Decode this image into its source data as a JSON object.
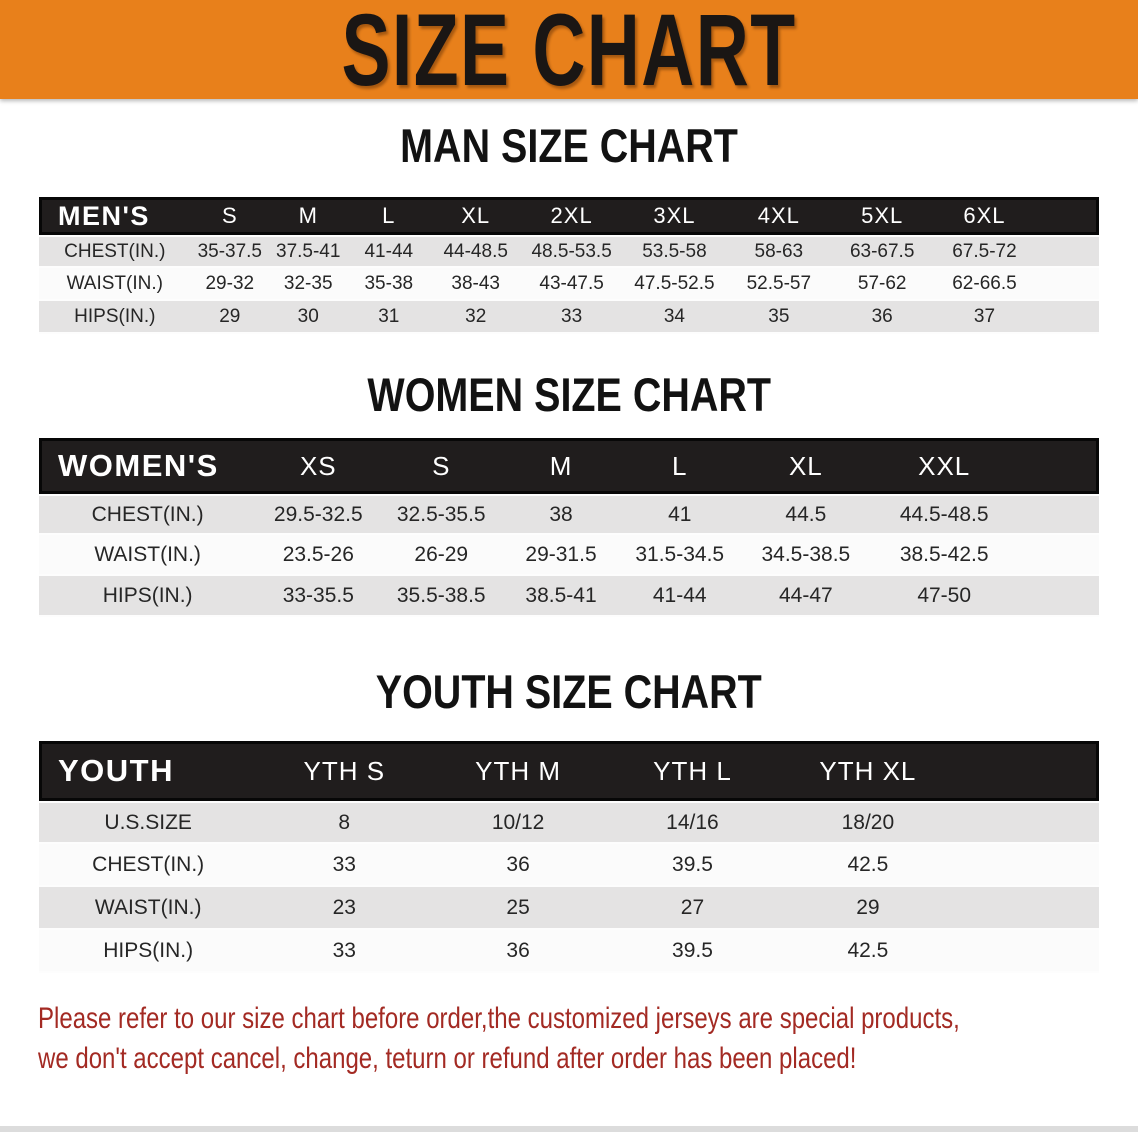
{
  "banner": {
    "title": "SIZE CHART"
  },
  "sections": [
    {
      "title": "MAN SIZE CHART",
      "header_label": "MEN'S",
      "columns": [
        "S",
        "M",
        "L",
        "XL",
        "2XL",
        "3XL",
        "4XL",
        "5XL",
        "6XL"
      ],
      "rows": [
        {
          "label": "CHEST(IN.)",
          "values": [
            "35-37.5",
            "37.5-41",
            "41-44",
            "44-48.5",
            "48.5-53.5",
            "53.5-58",
            "58-63",
            "63-67.5",
            "67.5-72"
          ]
        },
        {
          "label": "WAIST(IN.)",
          "values": [
            "29-32",
            "32-35",
            "35-38",
            "38-43",
            "43-47.5",
            "47.5-52.5",
            "52.5-57",
            "57-62",
            "62-66.5"
          ]
        },
        {
          "label": "HIPS(IN.)",
          "values": [
            "29",
            "30",
            "31",
            "32",
            "33",
            "34",
            "35",
            "36",
            "37"
          ]
        }
      ]
    },
    {
      "title": "WOMEN SIZE CHART",
      "header_label": "WOMEN'S",
      "columns": [
        "XS",
        "S",
        "M",
        "L",
        "XL",
        "XXL"
      ],
      "rows": [
        {
          "label": "CHEST(IN.)",
          "values": [
            "29.5-32.5",
            "32.5-35.5",
            "38",
            "41",
            "44.5",
            "44.5-48.5"
          ]
        },
        {
          "label": "WAIST(IN.)",
          "values": [
            "23.5-26",
            "26-29",
            "29-31.5",
            "31.5-34.5",
            "34.5-38.5",
            "38.5-42.5"
          ]
        },
        {
          "label": "HIPS(IN.)",
          "values": [
            "33-35.5",
            "35.5-38.5",
            "38.5-41",
            "41-44",
            "44-47",
            "47-50"
          ]
        }
      ]
    },
    {
      "title": "YOUTH SIZE CHART",
      "header_label": "YOUTH",
      "columns": [
        "YTH S",
        "YTH M",
        "YTH L",
        "YTH XL"
      ],
      "rows": [
        {
          "label": "U.S.SIZE",
          "values": [
            "8",
            "10/12",
            "14/16",
            "18/20"
          ]
        },
        {
          "label": "CHEST(IN.)",
          "values": [
            "33",
            "36",
            "39.5",
            "42.5"
          ]
        },
        {
          "label": "WAIST(IN.)",
          "values": [
            "23",
            "25",
            "27",
            "29"
          ]
        },
        {
          "label": "HIPS(IN.)",
          "values": [
            "33",
            "36",
            "39.5",
            "42.5"
          ]
        }
      ]
    }
  ],
  "disclaimer": {
    "line1": "Please refer to our size chart before order,the customized jerseys are special products,",
    "line2": "we don't accept cancel, change, teturn or refund after order has been placed!"
  },
  "colors": {
    "banner_bg": "#E8801B",
    "banner_text": "#1A1614",
    "header_bar_bg": "#201D1D",
    "header_bar_text": "#FFFFFF",
    "row_gray": "#E4E3E3",
    "row_white": "#FBFBFB",
    "disclaimer_red": "#A32A23"
  }
}
